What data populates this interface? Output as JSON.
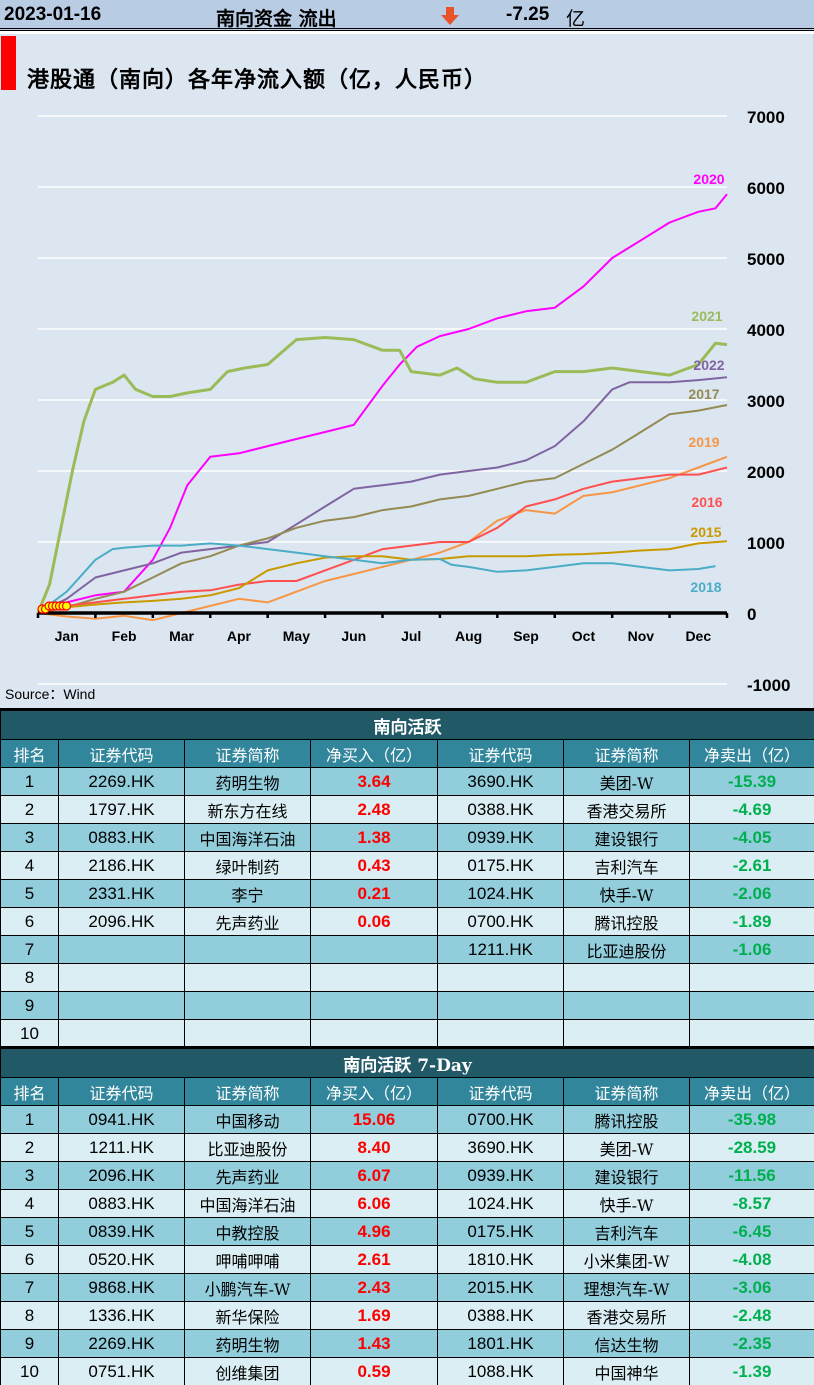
{
  "topbar": {
    "date": "2023-01-16",
    "label": "南向资金 流出",
    "arrow_icon": "down-arrow-icon",
    "arrow_color": "#e8532a",
    "value": "-7.25",
    "unit": "亿"
  },
  "chart_data": {
    "type": "line",
    "title": "港股通（南向）各年净流入额（亿，人民币）",
    "source": "Source：Wind",
    "xlabel": "",
    "ylabel": "",
    "x_ticks": [
      "Jan",
      "Feb",
      "Mar",
      "Apr",
      "May",
      "Jun",
      "Jul",
      "Aug",
      "Sep",
      "Oct",
      "Nov",
      "Dec"
    ],
    "y_ticks": [
      "7000",
      "6000",
      "5000",
      "4000",
      "3000",
      "2000",
      "1000",
      "0",
      "-1000"
    ],
    "y_tick_values": [
      7000,
      6000,
      5000,
      4000,
      3000,
      2000,
      1000,
      0,
      -1000
    ],
    "ylim": [
      -1000,
      7000
    ],
    "xlim": [
      0,
      12
    ],
    "grid": true,
    "x_unit": "month",
    "series": [
      {
        "name": "2020",
        "color": "#ff00ff",
        "x": [
          0,
          0.5,
          1,
          1.5,
          2,
          2.3,
          2.6,
          3,
          3.5,
          4,
          4.5,
          5,
          5.5,
          6,
          6.3,
          6.6,
          7,
          7.5,
          8,
          8.5,
          9,
          9.5,
          10,
          10.5,
          11,
          11.5,
          11.8,
          12
        ],
        "y": [
          0,
          150,
          250,
          300,
          750,
          1200,
          1800,
          2200,
          2250,
          2350,
          2450,
          2550,
          2650,
          3200,
          3500,
          3750,
          3900,
          4000,
          4150,
          4250,
          4300,
          4600,
          5000,
          5250,
          5500,
          5650,
          5700,
          5900
        ]
      },
      {
        "name": "2021",
        "color": "#9bbb59",
        "x": [
          0,
          0.2,
          0.4,
          0.6,
          0.8,
          1,
          1.3,
          1.5,
          1.7,
          2,
          2.3,
          2.6,
          3,
          3.3,
          3.6,
          4,
          4.5,
          5,
          5.5,
          6,
          6.3,
          6.5,
          7,
          7.3,
          7.6,
          8,
          8.5,
          9,
          9.5,
          10,
          10.5,
          11,
          11.5,
          11.8,
          12
        ],
        "y": [
          0,
          400,
          1200,
          2000,
          2700,
          3150,
          3250,
          3350,
          3150,
          3050,
          3050,
          3100,
          3150,
          3400,
          3450,
          3500,
          3850,
          3880,
          3850,
          3700,
          3700,
          3400,
          3350,
          3450,
          3300,
          3250,
          3250,
          3400,
          3400,
          3450,
          3400,
          3350,
          3500,
          3800,
          3780
        ]
      },
      {
        "name": "2022",
        "color": "#8064a2",
        "x": [
          0,
          0.5,
          1,
          1.5,
          2,
          2.5,
          3,
          3.5,
          4,
          4.5,
          5,
          5.5,
          6,
          6.5,
          7,
          7.5,
          8,
          8.5,
          9,
          9.5,
          10,
          10.3,
          10.6,
          11,
          11.5,
          12
        ],
        "y": [
          0,
          200,
          500,
          600,
          700,
          850,
          900,
          950,
          1000,
          1250,
          1500,
          1750,
          1800,
          1850,
          1950,
          2000,
          2050,
          2150,
          2350,
          2700,
          3150,
          3250,
          3250,
          3250,
          3280,
          3320
        ]
      },
      {
        "name": "2017",
        "color": "#948a54",
        "x": [
          0,
          0.5,
          1,
          1.5,
          2,
          2.5,
          3,
          3.5,
          4,
          4.5,
          5,
          5.5,
          6,
          6.5,
          7,
          7.5,
          8,
          8.5,
          9,
          9.5,
          10,
          10.5,
          11,
          11.5,
          12
        ],
        "y": [
          0,
          80,
          200,
          300,
          500,
          700,
          800,
          950,
          1050,
          1200,
          1300,
          1350,
          1450,
          1500,
          1600,
          1650,
          1750,
          1850,
          1900,
          2100,
          2300,
          2550,
          2800,
          2850,
          2930
        ]
      },
      {
        "name": "2019",
        "color": "#f79646",
        "x": [
          0,
          0.5,
          1,
          1.5,
          2,
          2.5,
          3,
          3.5,
          4,
          4.5,
          5,
          5.5,
          6,
          6.5,
          7,
          7.5,
          8,
          8.5,
          9,
          9.5,
          10,
          10.5,
          11,
          11.5,
          12
        ],
        "y": [
          0,
          -50,
          -80,
          -40,
          -100,
          0,
          100,
          200,
          150,
          300,
          450,
          550,
          650,
          750,
          850,
          1000,
          1300,
          1450,
          1400,
          1650,
          1700,
          1800,
          1900,
          2050,
          2200
        ]
      },
      {
        "name": "2016",
        "color": "#ff5050",
        "x": [
          0,
          0.5,
          1,
          1.5,
          2,
          2.5,
          3,
          3.5,
          4,
          4.5,
          5,
          5.5,
          6,
          6.5,
          7,
          7.5,
          8,
          8.5,
          9,
          9.5,
          10,
          10.5,
          11,
          11.5,
          12
        ],
        "y": [
          0,
          100,
          150,
          200,
          250,
          300,
          320,
          400,
          450,
          450,
          600,
          750,
          900,
          950,
          1000,
          1000,
          1200,
          1500,
          1600,
          1750,
          1850,
          1900,
          1950,
          1950,
          2050
        ]
      },
      {
        "name": "2015",
        "color": "#c99a00",
        "x": [
          0,
          0.5,
          1,
          1.5,
          2,
          2.5,
          3,
          3.5,
          4,
          4.5,
          5,
          5.5,
          6,
          6.5,
          7,
          7.5,
          8,
          8.5,
          9,
          9.5,
          10,
          10.5,
          11,
          11.5,
          12
        ],
        "y": [
          0,
          80,
          120,
          150,
          170,
          200,
          250,
          350,
          600,
          700,
          780,
          800,
          800,
          750,
          760,
          800,
          800,
          800,
          820,
          830,
          850,
          880,
          900,
          980,
          1010
        ]
      },
      {
        "name": "2018",
        "color": "#4bacc6",
        "x": [
          0,
          0.5,
          1,
          1.3,
          1.5,
          2,
          2.5,
          3,
          3.5,
          4,
          4.5,
          5,
          5.5,
          6,
          6.5,
          7,
          7.2,
          7.5,
          8,
          8.5,
          9,
          9.5,
          10,
          10.5,
          11,
          11.5,
          11.8
        ],
        "y": [
          0,
          300,
          750,
          900,
          920,
          950,
          950,
          980,
          950,
          900,
          850,
          800,
          750,
          700,
          750,
          760,
          680,
          650,
          580,
          600,
          650,
          700,
          700,
          650,
          600,
          620,
          660
        ]
      }
    ],
    "start_markers": {
      "color": "#ffff00",
      "edge_color": "#ff0000",
      "count": 8
    }
  },
  "tables": [
    {
      "title": "南向活跃",
      "headers": [
        "排名",
        "证券代码",
        "证券简称",
        "净买入（亿）",
        "证券代码",
        "证券简称",
        "净卖出（亿）"
      ],
      "rows": [
        [
          "1",
          "2269.HK",
          "药明生物",
          "3.64",
          "3690.HK",
          "美团-W",
          "-15.39"
        ],
        [
          "2",
          "1797.HK",
          "新东方在线",
          "2.48",
          "0388.HK",
          "香港交易所",
          "-4.69"
        ],
        [
          "3",
          "0883.HK",
          "中国海洋石油",
          "1.38",
          "0939.HK",
          "建设银行",
          "-4.05"
        ],
        [
          "4",
          "2186.HK",
          "绿叶制药",
          "0.43",
          "0175.HK",
          "吉利汽车",
          "-2.61"
        ],
        [
          "5",
          "2331.HK",
          "李宁",
          "0.21",
          "1024.HK",
          "快手-W",
          "-2.06"
        ],
        [
          "6",
          "2096.HK",
          "先声药业",
          "0.06",
          "0700.HK",
          "腾讯控股",
          "-1.89"
        ],
        [
          "7",
          "",
          "",
          "",
          "1211.HK",
          "比亚迪股份",
          "-1.06"
        ],
        [
          "8",
          "",
          "",
          "",
          "",
          "",
          ""
        ],
        [
          "9",
          "",
          "",
          "",
          "",
          "",
          ""
        ],
        [
          "10",
          "",
          "",
          "",
          "",
          "",
          ""
        ]
      ]
    },
    {
      "title": "南向活跃 7-Day",
      "headers": [
        "排名",
        "证券代码",
        "证券简称",
        "净买入（亿）",
        "证券代码",
        "证券简称",
        "净卖出（亿）"
      ],
      "rows": [
        [
          "1",
          "0941.HK",
          "中国移动",
          "15.06",
          "0700.HK",
          "腾讯控股",
          "-35.98"
        ],
        [
          "2",
          "1211.HK",
          "比亚迪股份",
          "8.40",
          "3690.HK",
          "美团-W",
          "-28.59"
        ],
        [
          "3",
          "2096.HK",
          "先声药业",
          "6.07",
          "0939.HK",
          "建设银行",
          "-11.56"
        ],
        [
          "4",
          "0883.HK",
          "中国海洋石油",
          "6.06",
          "1024.HK",
          "快手-W",
          "-8.57"
        ],
        [
          "5",
          "0839.HK",
          "中教控股",
          "4.96",
          "0175.HK",
          "吉利汽车",
          "-6.45"
        ],
        [
          "6",
          "0520.HK",
          "呷哺呷哺",
          "2.61",
          "1810.HK",
          "小米集团-W",
          "-4.08"
        ],
        [
          "7",
          "9868.HK",
          "小鹏汽车-W",
          "2.43",
          "2015.HK",
          "理想汽车-W",
          "-3.06"
        ],
        [
          "8",
          "1336.HK",
          "新华保险",
          "1.69",
          "0388.HK",
          "香港交易所",
          "-2.48"
        ],
        [
          "9",
          "2269.HK",
          "药明生物",
          "1.43",
          "1801.HK",
          "信达生物",
          "-2.35"
        ],
        [
          "10",
          "0751.HK",
          "创维集团",
          "0.59",
          "1088.HK",
          "中国神华",
          "-1.39"
        ]
      ]
    }
  ],
  "colors": {
    "buy": "#ff0000",
    "sell": "#00b050",
    "table_title_bg": "#215967",
    "table_head_bg": "#31869b",
    "row_odd": "#92cddc",
    "row_even": "#daeef3"
  }
}
